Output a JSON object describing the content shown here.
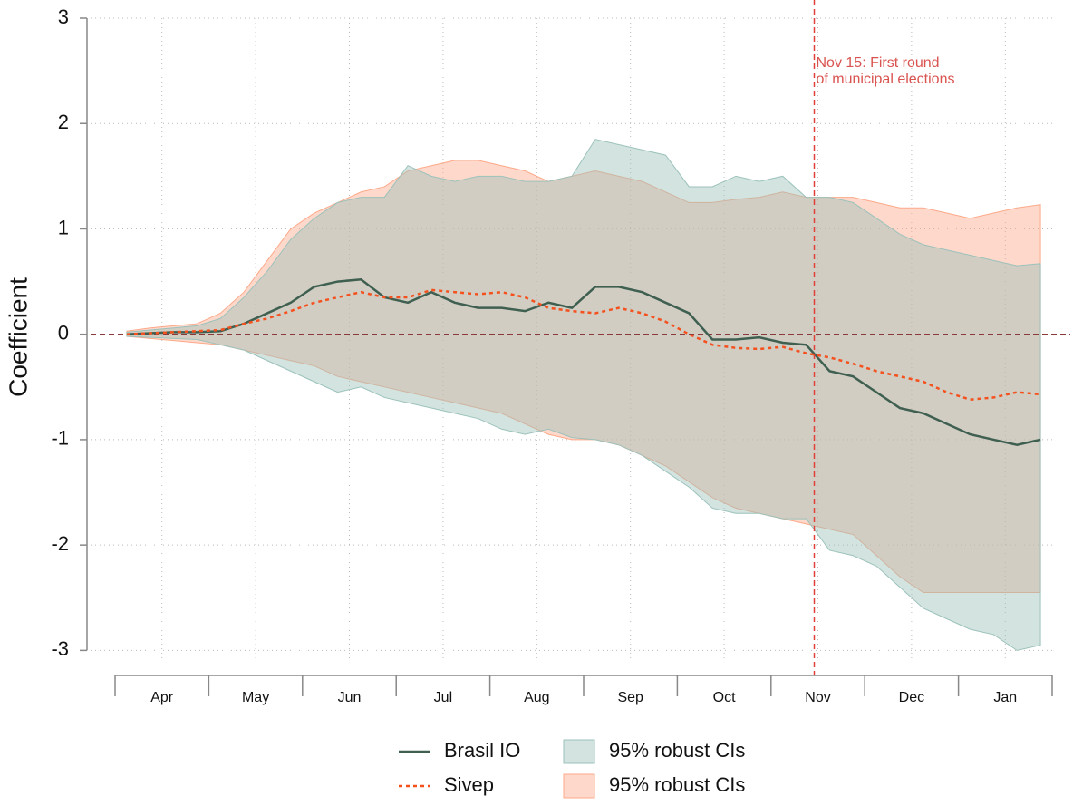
{
  "chart_data": {
    "type": "line",
    "ylabel": "Coefficient",
    "categories": [
      null,
      "Apr",
      null,
      null,
      null,
      "May",
      null,
      null,
      null,
      "Jun",
      null,
      null,
      null,
      "Jul",
      null,
      null,
      null,
      "Aug",
      null,
      null,
      null,
      "Sep",
      null,
      null,
      null,
      "Oct",
      null,
      null,
      null,
      "Nov",
      null,
      null,
      null,
      "Dec",
      null,
      null,
      null,
      "Jan",
      null,
      null
    ],
    "series": [
      {
        "name": "Brasil IO",
        "color": "#3f5f50",
        "dashed": false,
        "values": [
          0,
          0.01,
          0.02,
          0.02,
          0.03,
          0.1,
          0.2,
          0.3,
          0.45,
          0.5,
          0.52,
          0.35,
          0.3,
          0.4,
          0.3,
          0.25,
          0.25,
          0.22,
          0.3,
          0.25,
          0.45,
          0.45,
          0.4,
          0.3,
          0.2,
          -0.05,
          -0.05,
          -0.03,
          -0.08,
          -0.1,
          -0.35,
          -0.4,
          -0.55,
          -0.7,
          -0.75,
          -0.85,
          -0.95,
          -1,
          -1.05,
          -1
        ]
      },
      {
        "name": "Sivep",
        "color": "#f4511e",
        "dashed": true,
        "values": [
          0,
          0.01,
          0.02,
          0.03,
          0.04,
          0.1,
          0.15,
          0.22,
          0.3,
          0.35,
          0.4,
          0.35,
          0.35,
          0.42,
          0.4,
          0.38,
          0.4,
          0.35,
          0.25,
          0.22,
          0.2,
          0.25,
          0.2,
          0.12,
          0,
          -0.1,
          -0.13,
          -0.14,
          -0.12,
          -0.18,
          -0.22,
          -0.28,
          -0.35,
          -0.4,
          -0.45,
          -0.55,
          -0.62,
          -0.6,
          -0.55,
          -0.57
        ]
      }
    ],
    "bands": [
      {
        "name": "95% robust CIs",
        "color": "#9cc2bb",
        "upper": [
          0.02,
          0.04,
          0.06,
          0.08,
          0.15,
          0.35,
          0.6,
          0.9,
          1.1,
          1.25,
          1.3,
          1.3,
          1.6,
          1.5,
          1.45,
          1.5,
          1.5,
          1.45,
          1.45,
          1.5,
          1.85,
          1.8,
          1.75,
          1.7,
          1.4,
          1.4,
          1.5,
          1.45,
          1.5,
          1.3,
          1.3,
          1.25,
          1.1,
          0.95,
          0.85,
          0.8,
          0.75,
          0.7,
          0.65,
          0.67
        ],
        "lower": [
          -0.02,
          -0.03,
          -0.04,
          -0.05,
          -0.1,
          -0.15,
          -0.25,
          -0.35,
          -0.45,
          -0.55,
          -0.5,
          -0.6,
          -0.65,
          -0.7,
          -0.75,
          -0.8,
          -0.9,
          -0.95,
          -0.9,
          -0.98,
          -1,
          -1.05,
          -1.15,
          -1.3,
          -1.45,
          -1.65,
          -1.7,
          -1.7,
          -1.75,
          -1.75,
          -2.05,
          -2.1,
          -2.2,
          -2.4,
          -2.6,
          -2.7,
          -2.8,
          -2.85,
          -3,
          -2.95
        ]
      },
      {
        "name": "95% robust CIs",
        "color": "#fca98a",
        "upper": [
          0.03,
          0.06,
          0.08,
          0.1,
          0.2,
          0.4,
          0.7,
          1,
          1.15,
          1.25,
          1.35,
          1.4,
          1.55,
          1.6,
          1.65,
          1.65,
          1.6,
          1.55,
          1.45,
          1.5,
          1.55,
          1.5,
          1.45,
          1.35,
          1.25,
          1.25,
          1.28,
          1.3,
          1.35,
          1.3,
          1.3,
          1.3,
          1.25,
          1.2,
          1.2,
          1.15,
          1.1,
          1.15,
          1.2,
          1.23
        ],
        "lower": [
          -0.02,
          -0.04,
          -0.06,
          -0.08,
          -0.1,
          -0.15,
          -0.2,
          -0.25,
          -0.3,
          -0.4,
          -0.45,
          -0.5,
          -0.55,
          -0.6,
          -0.65,
          -0.7,
          -0.75,
          -0.85,
          -0.95,
          -1,
          -1,
          -1.05,
          -1.15,
          -1.25,
          -1.4,
          -1.55,
          -1.65,
          -1.7,
          -1.75,
          -1.8,
          -1.85,
          -1.9,
          -2.1,
          -2.3,
          -2.45,
          -2.45,
          -2.45,
          -2.45,
          -2.45,
          -2.45
        ]
      }
    ],
    "ylim": [
      -3.1,
      3
    ],
    "yticks": [
      -3,
      -2,
      -1,
      0,
      1,
      2,
      3
    ],
    "grid": true,
    "hline": 0,
    "vline_category": "Nov",
    "annotation": [
      "Nov 15: First round",
      "of municipal elections"
    ]
  }
}
